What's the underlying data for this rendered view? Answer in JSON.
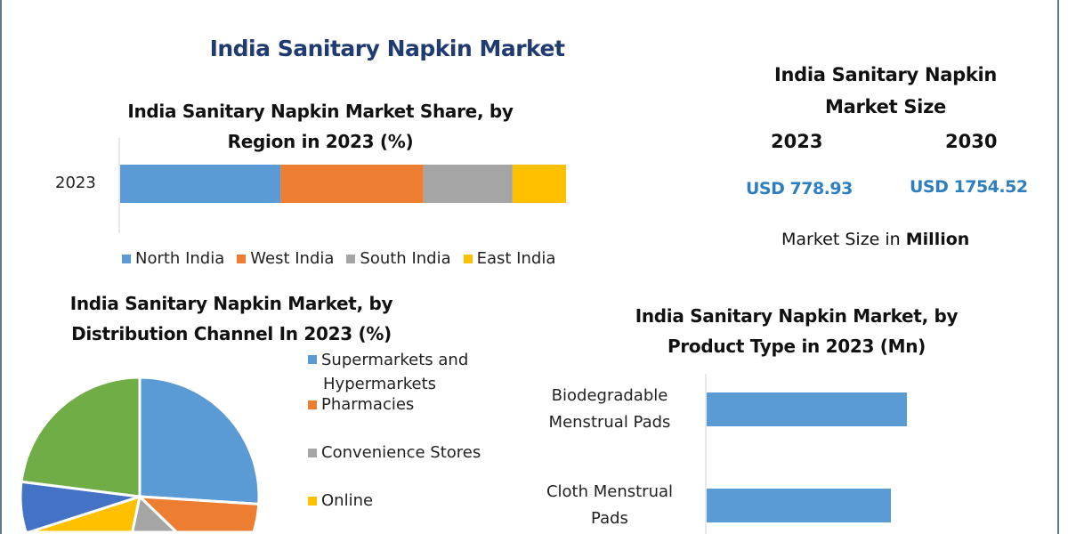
{
  "title": "India Sanitary Napkin Market",
  "market_size": {
    "title_line1": "India Sanitary Napkin",
    "title_line2": "Market Size",
    "year_a": "2023",
    "year_b": "2030",
    "value_a": "USD 778.93",
    "value_b": "USD 1754.52",
    "unit_prefix": "Market Size in ",
    "unit_bold": "Million",
    "value_color": "#2e7fc0"
  },
  "chart_data": [
    {
      "type": "bar",
      "orientation": "horizontal-stacked",
      "title_line1": "India Sanitary Napkin Market Share, by",
      "title_line2": "Region in 2023 (%)",
      "categories": [
        "2023"
      ],
      "series": [
        {
          "name": "North India",
          "values": [
            36
          ],
          "color": "#5b9bd5"
        },
        {
          "name": "West India",
          "values": [
            32
          ],
          "color": "#ed7d31"
        },
        {
          "name": "South India",
          "values": [
            20
          ],
          "color": "#a5a5a5"
        },
        {
          "name": "East India",
          "values": [
            12
          ],
          "color": "#ffc000"
        }
      ],
      "legend": "bottom"
    },
    {
      "type": "pie",
      "title_line1": "India Sanitary Napkin Market, by",
      "title_line2": "Distribution Channel In 2023 (%)",
      "slices": [
        {
          "name": "Supermarkets and Hypermarkets",
          "name_line1": "Supermarkets and",
          "name_line2": "Hypermarkets",
          "value": 26,
          "color": "#5b9bd5"
        },
        {
          "name": "Pharmacies",
          "value": 19,
          "color": "#ed7d31"
        },
        {
          "name": "Convenience Stores",
          "value": 6,
          "color": "#a5a5a5"
        },
        {
          "name": "Online",
          "value": 18,
          "color": "#ffc000"
        },
        {
          "value": 8,
          "color": "#4472c4"
        },
        {
          "value": 23,
          "color": "#70ad47"
        }
      ],
      "legend": "right"
    },
    {
      "type": "bar",
      "orientation": "horizontal",
      "title_line1": "India Sanitary Napkin Market, by",
      "title_line2": "Product Type in 2023 (Mn)",
      "categories": [
        {
          "line1": "Biodegradable",
          "line2": "Menstrual Pads"
        },
        {
          "line1": "Cloth Menstrual",
          "line2": "Pads"
        }
      ],
      "values_relative": [
        1.0,
        0.92
      ],
      "color": "#5b9bd5"
    }
  ]
}
